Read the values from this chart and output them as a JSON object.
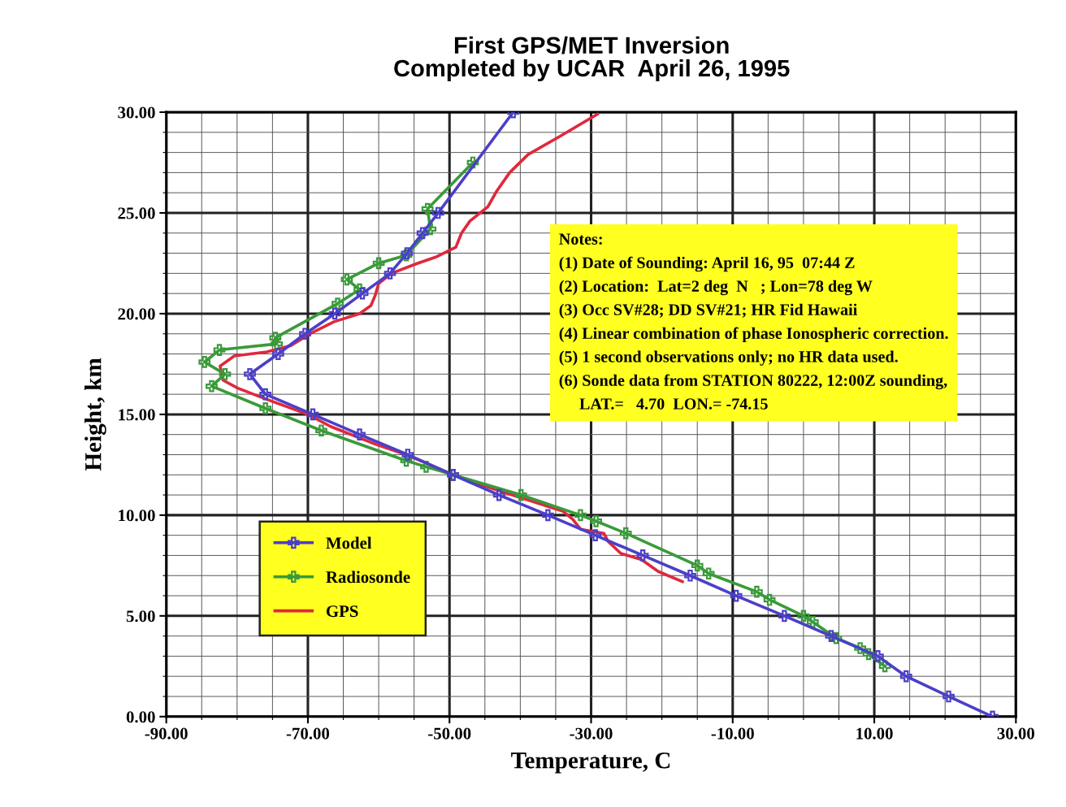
{
  "chart_data": {
    "type": "line",
    "title": "First GPS/MET Inversion\nCompleted by UCAR  April 26, 1995",
    "xlabel": "Temperature, C",
    "ylabel": "Height, km",
    "series": [
      {
        "name": "Model",
        "color": "#4b3fc8",
        "marker": "cross",
        "x": [
          -41.0,
          -51.6,
          -53.8,
          -56.0,
          -58.4,
          -62.3,
          -66.2,
          -70.4,
          -74.2,
          -78.2,
          -76.0,
          -69.3,
          -62.7,
          -55.9,
          -49.5,
          -43.0,
          -36.1,
          -29.4,
          -22.7,
          -16.0,
          -9.5,
          -2.7,
          3.9,
          10.5,
          14.5,
          20.5,
          26.7
        ],
        "values": [
          30,
          25,
          24,
          23,
          22,
          21,
          20,
          19,
          18,
          17,
          16,
          15,
          14,
          13,
          12,
          11,
          10,
          9,
          8,
          7,
          6,
          5,
          4,
          3,
          2,
          1,
          0
        ]
      },
      {
        "name": "Radiosonde",
        "color": "#3a9a3a",
        "marker": "cross",
        "x": [
          -46.7,
          -53.1,
          -52.7,
          -56.1,
          -60.0,
          -64.5,
          -62.7,
          -65.8,
          -74.6,
          -74.4,
          -82.5,
          -84.6,
          -81.7,
          -83.6,
          -76.0,
          -68.1,
          -56.1,
          -53.3,
          -49.5,
          -39.9,
          -31.5,
          -29.3,
          -25.1,
          -15.0,
          -13.4,
          -6.6,
          -4.8,
          0.0,
          1.3,
          4.6,
          8.0,
          9.2,
          11.5
        ],
        "values": [
          27.5,
          25.2,
          24.2,
          22.9,
          22.5,
          21.7,
          21.2,
          20.5,
          18.8,
          18.5,
          18.2,
          17.6,
          17.0,
          16.4,
          15.3,
          14.2,
          12.7,
          12.4,
          12.0,
          11.0,
          10.0,
          9.7,
          9.1,
          7.5,
          7.1,
          6.2,
          5.8,
          5.0,
          4.7,
          3.9,
          3.4,
          3.1,
          2.5
        ]
      },
      {
        "name": "GPS",
        "color": "#e0283c",
        "marker": "none",
        "x": [
          -29.1,
          -34.4,
          -38.9,
          -41.5,
          -43.3,
          -44.6,
          -47.1,
          -48.3,
          -49.1,
          -52.0,
          -54.5,
          -58.2,
          -60.0,
          -60.5,
          -61.1,
          -62.7,
          -66.3,
          -69.7,
          -72.5,
          -75.8,
          -80.4,
          -82.4,
          -82.0,
          -79.9,
          -76.2,
          -70.0,
          -66.8,
          -60.3,
          -56.1,
          -49.5,
          -43.8,
          -34.0,
          -32.6,
          -31.5,
          -28.2,
          -27.6,
          -25.8,
          -22.9,
          -20.5,
          -17.1
        ],
        "values": [
          29.9,
          28.8,
          27.9,
          27.0,
          26.1,
          25.3,
          24.6,
          24.0,
          23.3,
          22.8,
          22.5,
          22.0,
          21.5,
          20.9,
          20.4,
          20.0,
          19.6,
          19.0,
          18.4,
          18.1,
          17.9,
          17.4,
          16.7,
          16.3,
          15.8,
          15.0,
          14.4,
          13.5,
          13.0,
          12.0,
          11.3,
          10.2,
          9.8,
          9.3,
          9.1,
          8.7,
          8.1,
          7.8,
          7.2,
          6.7
        ]
      }
    ],
    "xlim": [
      -90,
      30
    ],
    "xticks": [
      {
        "value": -90,
        "label": "-90.00"
      },
      {
        "value": -70,
        "label": "-70.00"
      },
      {
        "value": -50,
        "label": "-50.00"
      },
      {
        "value": -30,
        "label": "-30.00"
      },
      {
        "value": -10,
        "label": "-10.00"
      },
      {
        "value": 10,
        "label": "10.00"
      },
      {
        "value": 30,
        "label": "30.00"
      }
    ],
    "ylim": [
      0,
      30
    ],
    "yticks": [
      {
        "value": 0,
        "label": "0.00"
      },
      {
        "value": 5,
        "label": "5.00"
      },
      {
        "value": 10,
        "label": "10.00"
      },
      {
        "value": 15,
        "label": "15.00"
      },
      {
        "value": 20,
        "label": "20.00"
      },
      {
        "value": 25,
        "label": "25.00"
      },
      {
        "value": 30,
        "label": "30.00"
      }
    ],
    "grid": true,
    "legend": "bottom left",
    "line_style": "solid",
    "annotations": [
      "Notes:",
      "(1) Date of Sounding: April 16, 95  07:44 Z",
      "(2) Location:  Lat=2 deg  N   ; Lon=78 deg W",
      "(3) Occ SV#28; DD SV#21; HR Fid Hawaii",
      "(4) Linear combination of phase Ionospheric correction.",
      "(5) 1 second observations only; no HR data used.",
      "(6) Sonde data from STATION 80222, 12:00Z sounding,\n     LAT.=   4.70  LON.= -74.15"
    ]
  }
}
